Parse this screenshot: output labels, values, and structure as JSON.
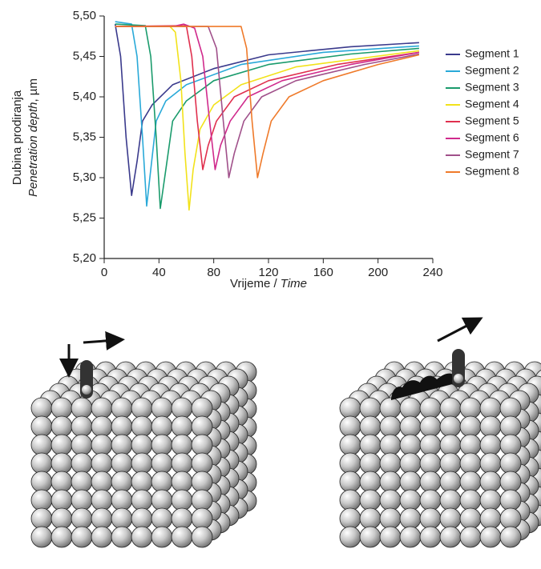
{
  "chart_data": {
    "type": "line",
    "y_label_line1": "Dubina prodiranja",
    "y_label_line2_italic": "Penetration depth",
    "y_label_line2_unit": ", µm",
    "x_label_plain": "Vrijeme / ",
    "x_label_italic": "Time",
    "xlim": [
      0,
      240
    ],
    "xticks": [
      0,
      40,
      80,
      120,
      160,
      200,
      240
    ],
    "ylim": [
      5.2,
      5.5
    ],
    "yticks": [
      {
        "value": 5.2,
        "label": "5,20"
      },
      {
        "value": 5.25,
        "label": "5,25"
      },
      {
        "value": 5.3,
        "label": "5,30"
      },
      {
        "value": 5.35,
        "label": "5,35"
      },
      {
        "value": 5.4,
        "label": "5,40"
      },
      {
        "value": 5.45,
        "label": "5,45"
      },
      {
        "value": 5.5,
        "label": "5,50"
      }
    ],
    "series": [
      {
        "name": "Segment 1",
        "color": "#3a3a8c",
        "x": [
          8,
          12,
          16,
          20,
          24,
          28,
          35,
          50,
          80,
          120,
          180,
          230
        ],
        "values": [
          5.49,
          5.45,
          5.35,
          5.278,
          5.32,
          5.37,
          5.39,
          5.415,
          5.435,
          5.452,
          5.462,
          5.467
        ]
      },
      {
        "name": "Segment 2",
        "color": "#29a9d8",
        "x": [
          8,
          20,
          24,
          28,
          31,
          34,
          38,
          45,
          60,
          100,
          160,
          230
        ],
        "values": [
          5.493,
          5.49,
          5.45,
          5.35,
          5.265,
          5.31,
          5.37,
          5.395,
          5.415,
          5.44,
          5.455,
          5.463
        ]
      },
      {
        "name": "Segment 3",
        "color": "#1a9b6c",
        "x": [
          8,
          30,
          34,
          38,
          41,
          45,
          50,
          60,
          80,
          120,
          180,
          230
        ],
        "values": [
          5.49,
          5.488,
          5.45,
          5.35,
          5.262,
          5.31,
          5.37,
          5.395,
          5.42,
          5.44,
          5.453,
          5.46
        ]
      },
      {
        "name": "Segment 4",
        "color": "#f2e21a",
        "x": [
          8,
          48,
          52,
          56,
          59,
          62,
          65,
          70,
          80,
          100,
          140,
          230
        ],
        "values": [
          5.487,
          5.487,
          5.48,
          5.42,
          5.33,
          5.26,
          5.31,
          5.36,
          5.39,
          5.415,
          5.437,
          5.457
        ]
      },
      {
        "name": "Segment 5",
        "color": "#e0304e",
        "x": [
          8,
          60,
          64,
          68,
          72,
          76,
          82,
          95,
          120,
          170,
          230
        ],
        "values": [
          5.487,
          5.488,
          5.45,
          5.37,
          5.31,
          5.34,
          5.37,
          5.4,
          5.42,
          5.44,
          5.455
        ]
      },
      {
        "name": "Segment 6",
        "color": "#d02a8c",
        "x": [
          8,
          50,
          58,
          66,
          72,
          77,
          81,
          85,
          92,
          105,
          130,
          180,
          230
        ],
        "values": [
          5.487,
          5.487,
          5.49,
          5.485,
          5.45,
          5.37,
          5.31,
          5.34,
          5.37,
          5.4,
          5.42,
          5.44,
          5.455
        ]
      },
      {
        "name": "Segment 7",
        "color": "#a0508a",
        "x": [
          8,
          76,
          82,
          87,
          91,
          95,
          102,
          115,
          140,
          190,
          230
        ],
        "values": [
          5.487,
          5.487,
          5.46,
          5.37,
          5.3,
          5.33,
          5.37,
          5.4,
          5.42,
          5.44,
          5.453
        ]
      },
      {
        "name": "Segment 8",
        "color": "#ef7a2a",
        "x": [
          8,
          100,
          104,
          108,
          112,
          116,
          122,
          135,
          160,
          200,
          230
        ],
        "values": [
          5.487,
          5.487,
          5.46,
          5.37,
          5.3,
          5.33,
          5.37,
          5.4,
          5.42,
          5.44,
          5.452
        ]
      }
    ]
  }
}
